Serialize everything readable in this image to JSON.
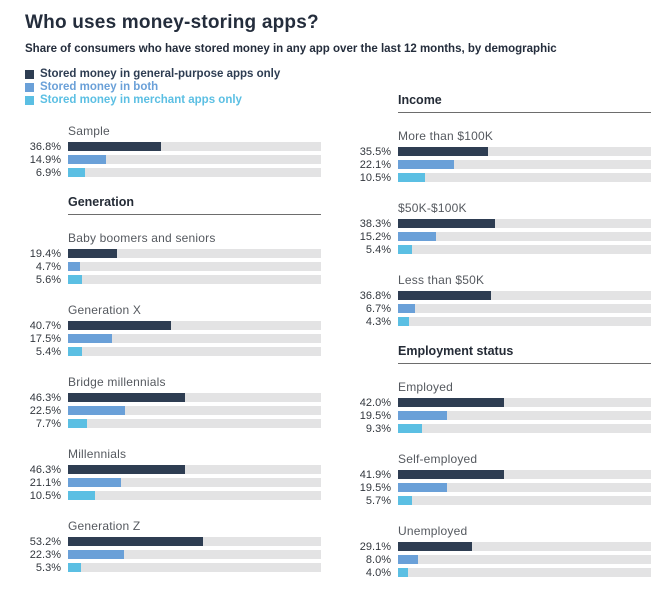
{
  "title": "Who uses money-storing apps?",
  "subtitle": "Share of consumers who have stored money in any app over the last 12 months, by demographic",
  "colors": {
    "series": [
      "#2e3d52",
      "#6aa0d8",
      "#5bbfe3"
    ],
    "track": "#e3e3e4",
    "rule": "#6d6d6d",
    "text_dark": "#242d3c"
  },
  "legend": [
    {
      "label": "Stored money in general-purpose apps only",
      "color": "#2e3d52"
    },
    {
      "label": "Stored money in both",
      "color": "#6aa0d8"
    },
    {
      "label": "Stored money in merchant apps only",
      "color": "#5bbfe3"
    }
  ],
  "chart_data": {
    "type": "bar",
    "title": "Who uses money-storing apps?",
    "subtitle": "Share of consumers who have stored money in any app over the last 12 months, by demographic",
    "unit": "%",
    "xlim": [
      0,
      100
    ],
    "grid": false,
    "legend_position": "top-left",
    "series_names": [
      "Stored money in general-purpose apps only",
      "Stored money in both",
      "Stored money in merchant apps only"
    ],
    "columns": [
      {
        "blocks": [
          {
            "kind": "group",
            "label": "Sample",
            "values": [
              "36.8%",
              "14.9%",
              "6.9%"
            ]
          },
          {
            "kind": "section",
            "label": "Generation"
          },
          {
            "kind": "group",
            "label": "Baby boomers and seniors",
            "values": [
              "19.4%",
              "4.7%",
              "5.6%"
            ]
          },
          {
            "kind": "group",
            "label": "Generation X",
            "values": [
              "40.7%",
              "17.5%",
              "5.4%"
            ]
          },
          {
            "kind": "group",
            "label": "Bridge millennials",
            "values": [
              "46.3%",
              "22.5%",
              "7.7%"
            ]
          },
          {
            "kind": "group",
            "label": "Millennials",
            "values": [
              "46.3%",
              "21.1%",
              "10.5%"
            ]
          },
          {
            "kind": "group",
            "label": "Generation Z",
            "values": [
              "53.2%",
              "22.3%",
              "5.3%"
            ]
          }
        ]
      },
      {
        "blocks": [
          {
            "kind": "section",
            "label": "Income"
          },
          {
            "kind": "group",
            "label": "More than $100K",
            "values": [
              "35.5%",
              "22.1%",
              "10.5%"
            ]
          },
          {
            "kind": "group",
            "label": "$50K-$100K",
            "values": [
              "38.3%",
              "15.2%",
              "5.4%"
            ]
          },
          {
            "kind": "group",
            "label": "Less than $50K",
            "values": [
              "36.8%",
              "6.7%",
              "4.3%"
            ]
          },
          {
            "kind": "section",
            "label": "Employment status"
          },
          {
            "kind": "group",
            "label": "Employed",
            "values": [
              "42.0%",
              "19.5%",
              "9.3%"
            ]
          },
          {
            "kind": "group",
            "label": "Self-employed",
            "values": [
              "41.9%",
              "19.5%",
              "5.7%"
            ]
          },
          {
            "kind": "group",
            "label": "Unemployed",
            "values": [
              "29.1%",
              "8.0%",
              "4.0%"
            ]
          }
        ]
      }
    ]
  }
}
